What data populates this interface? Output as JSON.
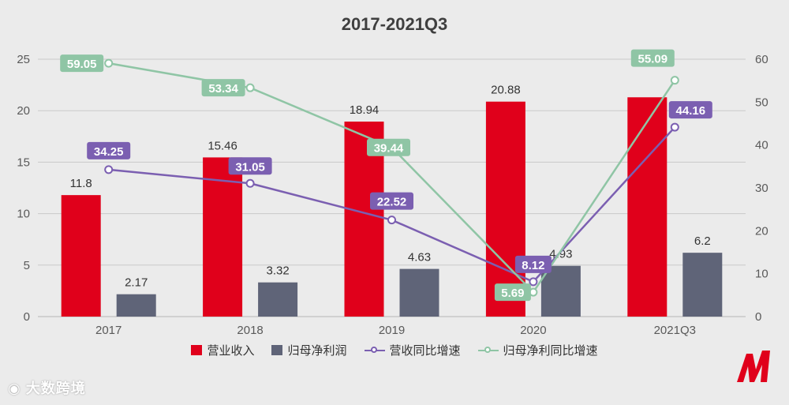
{
  "chart_data": {
    "type": "bar",
    "title": "2017-2021Q3",
    "categories": [
      "2017",
      "2018",
      "2019",
      "2020",
      "2021Q3"
    ],
    "ylim_left": [
      0,
      25
    ],
    "yticks_left": [
      "0",
      "5",
      "10",
      "15",
      "20",
      "25"
    ],
    "ylim_right": [
      0,
      60
    ],
    "yticks_right": [
      "0",
      "10",
      "20",
      "30",
      "40",
      "50",
      "60"
    ],
    "grid": true,
    "legend_position": "bottom",
    "series": [
      {
        "name": "营业收入",
        "kind": "bar",
        "axis": "left",
        "color": "#e0001b",
        "values": [
          11.8,
          15.46,
          18.94,
          20.88,
          21.3
        ],
        "labels": [
          "11.8",
          "15.46",
          "18.94",
          "20.88",
          ""
        ]
      },
      {
        "name": "归母净利润",
        "kind": "bar",
        "axis": "left",
        "color": "#5f6478",
        "values": [
          2.17,
          3.32,
          4.63,
          4.93,
          6.2
        ],
        "labels": [
          "2.17",
          "3.32",
          "4.63",
          "4.93",
          "6.2"
        ]
      },
      {
        "name": "营收同比增速",
        "kind": "line",
        "axis": "right",
        "color": "#7b5fb1",
        "values": [
          34.25,
          31.05,
          22.52,
          8.12,
          44.16
        ],
        "labels": [
          "34.25",
          "31.05",
          "22.52",
          "8.12",
          "44.16"
        ]
      },
      {
        "name": "归母净利同比增速",
        "kind": "line",
        "axis": "right",
        "color": "#8fc5a5",
        "values": [
          59.05,
          53.34,
          39.44,
          5.69,
          55.09
        ],
        "labels": [
          "59.05",
          "53.34",
          "39.44",
          "5.69",
          "55.09"
        ]
      }
    ]
  },
  "watermark": "大数跨境",
  "colors": {
    "background": "#ebebeb",
    "grid": "#c9c9c9",
    "axis_text": "#595959"
  },
  "icons": {
    "brand_logo": "red-m-logo-icon",
    "watermark_icon": "weibo-icon"
  }
}
